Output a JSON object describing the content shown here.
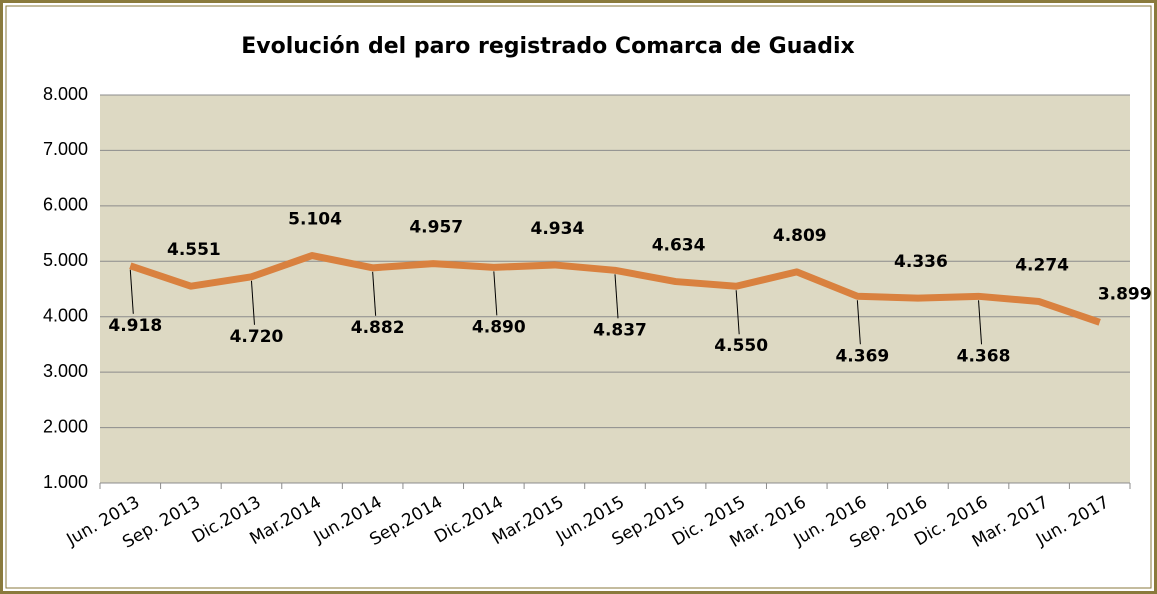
{
  "chart_data": {
    "type": "line",
    "title": "Evolución del paro registrado Comarca de Guadix",
    "categories": [
      "Jun. 2013",
      "Sep. 2013",
      "Dic.2013",
      "Mar.2014",
      "Jun.2014",
      "Sep.2014",
      "Dic.2014",
      "Mar.2015",
      "Jun.2015",
      "Sep.2015",
      "Dic. 2015",
      "Mar. 2016",
      "Jun. 2016",
      "Sep. 2016",
      "Dic. 2016",
      "Mar. 2017",
      "Jun. 2017"
    ],
    "values": [
      4918,
      4551,
      4720,
      5104,
      4882,
      4957,
      4890,
      4934,
      4837,
      4634,
      4550,
      4809,
      4369,
      4336,
      4368,
      4274,
      3899
    ],
    "value_labels": [
      "4.918",
      "4.551",
      "4.720",
      "5.104",
      "4.882",
      "4.957",
      "4.890",
      "4.934",
      "4.837",
      "4.634",
      "4.550",
      "4.809",
      "4.369",
      "4.336",
      "4.368",
      "4.274",
      "3.899"
    ],
    "color": "#d9813f",
    "ylim": [
      1000,
      8000
    ],
    "yticks": [
      {
        "value": 1000,
        "label": "1.000"
      },
      {
        "value": 2000,
        "label": "2.000"
      },
      {
        "value": 3000,
        "label": "3.000"
      },
      {
        "value": 4000,
        "label": "4.000"
      },
      {
        "value": 5000,
        "label": "5.000"
      },
      {
        "value": 6000,
        "label": "6.000"
      },
      {
        "value": 7000,
        "label": "7.000"
      },
      {
        "value": 8000,
        "label": "8.000"
      }
    ],
    "grid": true
  }
}
